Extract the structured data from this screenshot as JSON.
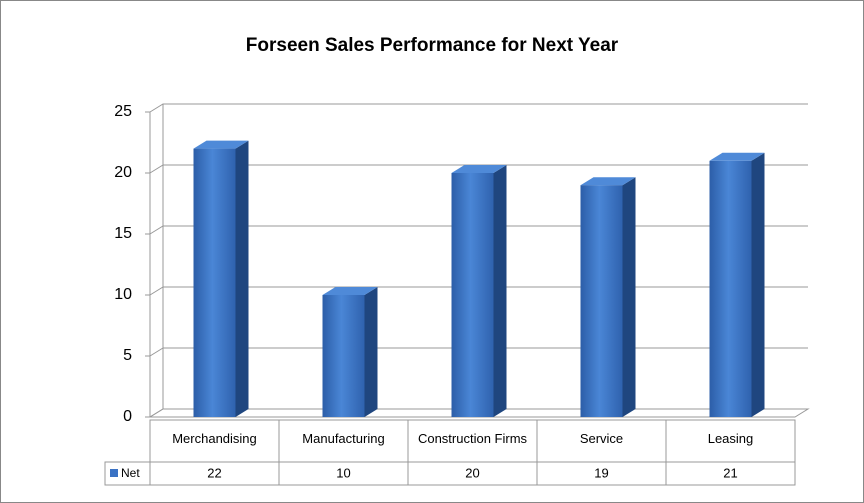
{
  "chart_data": {
    "type": "bar",
    "title": "Forseen Sales Performance for Next Year",
    "categories": [
      "Merchandising",
      "Manufacturing",
      "Construction Firms",
      "Service",
      "Leasing"
    ],
    "series": [
      {
        "name": "Net",
        "color": "#3a72c4",
        "values": [
          22,
          10,
          20,
          19,
          21
        ]
      }
    ],
    "ylim": [
      0,
      25
    ],
    "yticks": [
      0,
      5,
      10,
      15,
      20,
      25
    ],
    "grid": true,
    "data_table": true
  }
}
